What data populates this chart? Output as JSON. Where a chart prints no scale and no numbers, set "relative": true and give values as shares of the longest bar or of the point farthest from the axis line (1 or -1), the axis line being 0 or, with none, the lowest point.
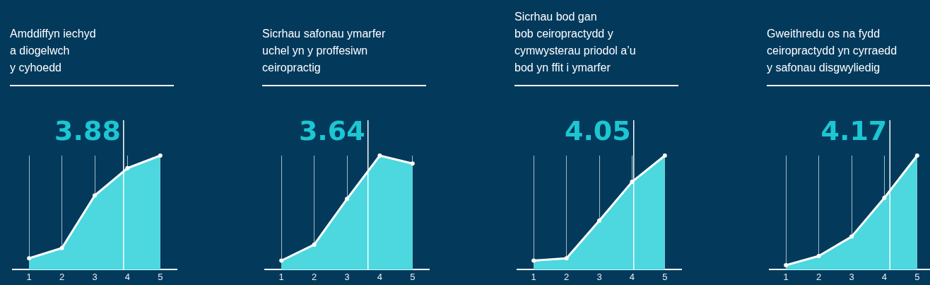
{
  "chart_data": [
    {
      "type": "area",
      "title": "Amddiffyn iechyd\na diogelwch\ny cyhoedd",
      "relative": true,
      "x": [
        1,
        2,
        3,
        4,
        5
      ],
      "xlim": [
        0.5,
        5.5
      ],
      "xticks": [
        1,
        2,
        3,
        4,
        5
      ],
      "grid": "x",
      "marker": "circle",
      "series": [
        {
          "color": "#4dd7df",
          "values": [
            0.1,
            0.19,
            0.65,
            0.89,
            1
          ]
        }
      ],
      "ref_lines": [
        {
          "axis": "x",
          "value": 3.88,
          "label": "3.88",
          "color": "#ffffff"
        }
      ]
    },
    {
      "type": "area",
      "title": "Sicrhau safonau ymarfer\nuchel yn y proffesiwn\nceiropractig",
      "relative": true,
      "x": [
        1,
        2,
        3,
        4,
        5
      ],
      "xlim": [
        0.5,
        5.5
      ],
      "xticks": [
        1,
        2,
        3,
        4,
        5
      ],
      "grid": "x",
      "marker": "circle",
      "series": [
        {
          "color": "#4dd7df",
          "values": [
            0.08,
            0.22,
            0.62,
            1,
            0.93
          ]
        }
      ],
      "ref_lines": [
        {
          "axis": "x",
          "value": 3.64,
          "label": "3.64",
          "color": "#ffffff"
        }
      ]
    },
    {
      "type": "area",
      "title": "Sicrhau bod gan\nbob ceiropractydd y\ncymwysterau priodol a’u\nbod yn ffit i ymarfer",
      "relative": true,
      "x": [
        1,
        2,
        3,
        4,
        5
      ],
      "xlim": [
        0.5,
        5.5
      ],
      "xticks": [
        1,
        2,
        3,
        4,
        5
      ],
      "grid": "x",
      "marker": "circle",
      "series": [
        {
          "color": "#4dd7df",
          "values": [
            0.08,
            0.1,
            0.43,
            0.77,
            1
          ]
        }
      ],
      "ref_lines": [
        {
          "axis": "x",
          "value": 4.05,
          "label": "4.05",
          "color": "#ffffff"
        }
      ]
    },
    {
      "type": "area",
      "title": "Gweithredu os na fydd\nceiropractydd yn cyrraedd\ny safonau disgwyliedig",
      "relative": true,
      "x": [
        1,
        2,
        3,
        4,
        5
      ],
      "xlim": [
        0.5,
        5.5
      ],
      "xticks": [
        1,
        2,
        3,
        4,
        5
      ],
      "grid": "x",
      "marker": "circle",
      "series": [
        {
          "color": "#4dd7df",
          "values": [
            0.04,
            0.12,
            0.29,
            0.63,
            1
          ]
        }
      ],
      "ref_lines": [
        {
          "axis": "x",
          "value": 4.17,
          "label": "4.17",
          "color": "#ffffff"
        }
      ]
    }
  ]
}
